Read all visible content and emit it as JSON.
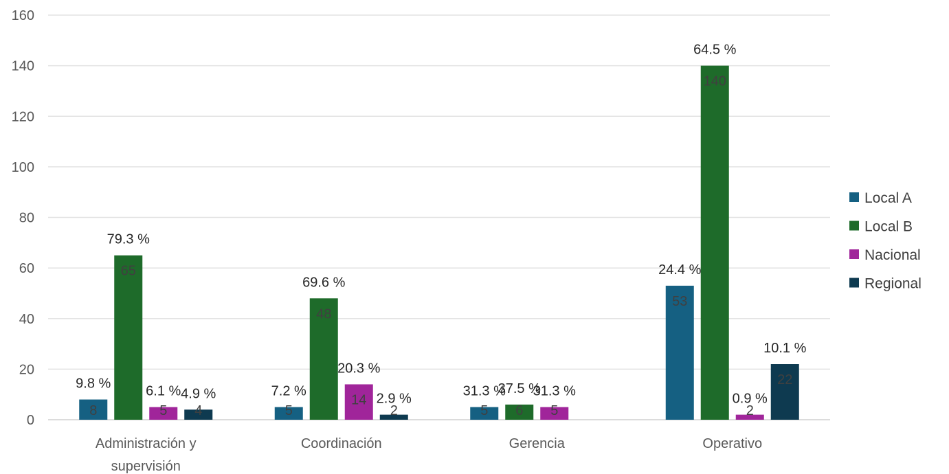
{
  "chart_data": {
    "type": "bar",
    "categories": [
      [
        "Administración y",
        "supervisión"
      ],
      [
        "Coordinación"
      ],
      [
        "Gerencia"
      ],
      [
        "Operativo"
      ]
    ],
    "series": [
      {
        "name": "Local A",
        "color": "#156082",
        "values": [
          8,
          5,
          5,
          53
        ],
        "pct_labels": [
          "9.8 %",
          "7.2 %",
          "31.3 %",
          "24.4 %"
        ]
      },
      {
        "name": "Local B",
        "color": "#1e6b2a",
        "values": [
          65,
          48,
          6,
          140
        ],
        "pct_labels": [
          "79.3 %",
          "69.6 %",
          "37.5 %",
          "64.5 %"
        ]
      },
      {
        "name": "Nacional",
        "color": "#a0259a",
        "values": [
          5,
          14,
          5,
          2
        ],
        "pct_labels": [
          "6.1 %",
          "20.3 %",
          "31.3 %",
          "0.9 %"
        ]
      },
      {
        "name": "Regional",
        "color": "#0e3a50",
        "values": [
          4,
          2,
          null,
          22
        ],
        "pct_labels": [
          "4.9 %",
          "2.9 %",
          null,
          "10.1 %"
        ]
      }
    ],
    "ylim": [
      0,
      160
    ],
    "yticks": [
      0,
      20,
      40,
      60,
      80,
      100,
      120,
      140,
      160
    ],
    "grid": true,
    "legend_position": "right"
  }
}
